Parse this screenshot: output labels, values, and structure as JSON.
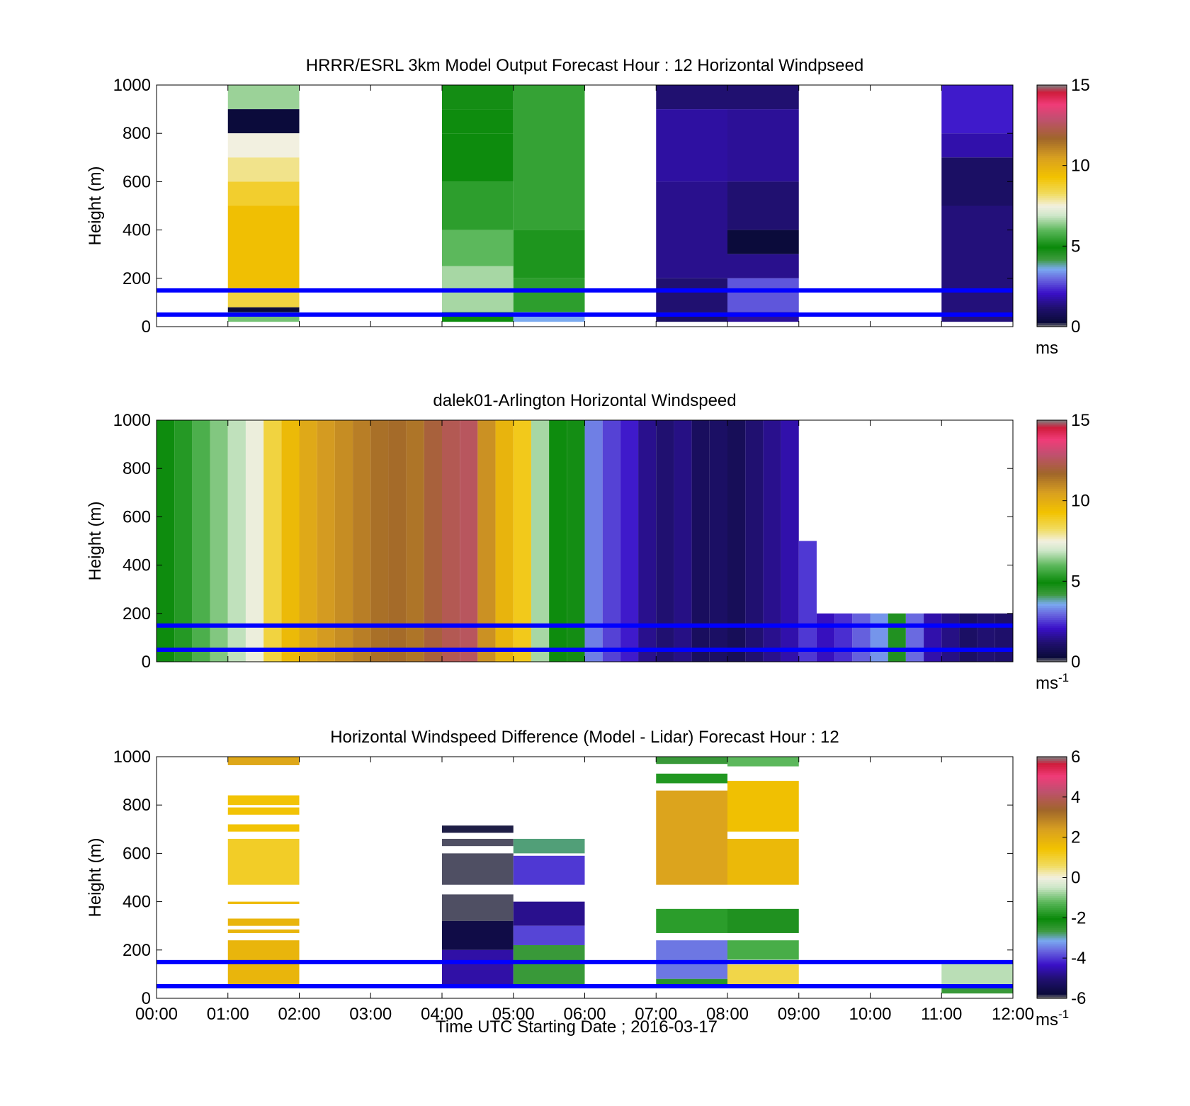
{
  "figure": {
    "xlabel": "Time UTC  Starting Date ; 2016-03-17",
    "xticks": [
      "00:00",
      "01:00",
      "02:00",
      "03:00",
      "04:00",
      "05:00",
      "06:00",
      "07:00",
      "08:00",
      "09:00",
      "10:00",
      "11:00",
      "12:00"
    ],
    "ylabel": "Height (m)",
    "yticks": [
      "0",
      "200",
      "400",
      "600",
      "800",
      "1000"
    ],
    "highlight_line_color": "#0000ff",
    "highlight_heights_m": [
      50,
      150
    ]
  },
  "chart_data": [
    {
      "type": "heatmap",
      "title": "HRRR/ESRL 3km Model Output   Forecast Hour : 12 Horizontal Windpseed",
      "colorbar_unit": "ms",
      "colorbar_ticks": [
        "0",
        "5",
        "10",
        "15"
      ],
      "clim": [
        0,
        15
      ],
      "xlim_hours": [
        0,
        12
      ],
      "ylim": [
        0,
        1000
      ],
      "columns": [
        {
          "t0": 1,
          "t1": 2,
          "cells": [
            {
              "h0": 900,
              "h1": 1000,
              "v": 6.5
            },
            {
              "h0": 800,
              "h1": 900,
              "v": 0.3
            },
            {
              "h0": 700,
              "h1": 800,
              "v": 7.5
            },
            {
              "h0": 600,
              "h1": 700,
              "v": 8.0
            },
            {
              "h0": 500,
              "h1": 600,
              "v": 8.8
            },
            {
              "h0": 160,
              "h1": 500,
              "v": 9.4
            },
            {
              "h0": 80,
              "h1": 160,
              "v": 8.6
            },
            {
              "h0": 60,
              "h1": 80,
              "v": 0.3
            },
            {
              "h0": 20,
              "h1": 60,
              "v": 6.2
            }
          ]
        },
        {
          "t0": 4,
          "t1": 5,
          "cells": [
            {
              "h0": 900,
              "h1": 1000,
              "v": 4.8
            },
            {
              "h0": 800,
              "h1": 900,
              "v": 5.0
            },
            {
              "h0": 600,
              "h1": 800,
              "v": 4.9
            },
            {
              "h0": 400,
              "h1": 600,
              "v": 5.4
            },
            {
              "h0": 250,
              "h1": 400,
              "v": 6.0
            },
            {
              "h0": 60,
              "h1": 250,
              "v": 6.6
            },
            {
              "h0": 20,
              "h1": 60,
              "v": 5.0
            }
          ]
        },
        {
          "t0": 5,
          "t1": 6,
          "cells": [
            {
              "h0": 400,
              "h1": 1000,
              "v": 5.5
            },
            {
              "h0": 200,
              "h1": 400,
              "v": 5.2
            },
            {
              "h0": 60,
              "h1": 200,
              "v": 5.4
            },
            {
              "h0": 20,
              "h1": 60,
              "v": 3.6
            }
          ]
        },
        {
          "t0": 7,
          "t1": 8,
          "cells": [
            {
              "h0": 900,
              "h1": 1000,
              "v": 1.2
            },
            {
              "h0": 600,
              "h1": 900,
              "v": 1.7
            },
            {
              "h0": 200,
              "h1": 600,
              "v": 1.5
            },
            {
              "h0": 60,
              "h1": 200,
              "v": 1.2
            },
            {
              "h0": 20,
              "h1": 60,
              "v": 1.0
            }
          ]
        },
        {
          "t0": 8,
          "t1": 9,
          "cells": [
            {
              "h0": 900,
              "h1": 1000,
              "v": 1.2
            },
            {
              "h0": 600,
              "h1": 900,
              "v": 1.6
            },
            {
              "h0": 400,
              "h1": 600,
              "v": 1.2
            },
            {
              "h0": 300,
              "h1": 400,
              "v": 0.3
            },
            {
              "h0": 200,
              "h1": 300,
              "v": 1.5
            },
            {
              "h0": 60,
              "h1": 200,
              "v": 2.8
            },
            {
              "h0": 20,
              "h1": 60,
              "v": 1.6
            }
          ]
        },
        {
          "t0": 11,
          "t1": 12,
          "cells": [
            {
              "h0": 800,
              "h1": 1000,
              "v": 2.2
            },
            {
              "h0": 700,
              "h1": 800,
              "v": 1.8
            },
            {
              "h0": 500,
              "h1": 700,
              "v": 1.0
            },
            {
              "h0": 20,
              "h1": 500,
              "v": 1.3
            }
          ]
        }
      ]
    },
    {
      "type": "heatmap",
      "title": "dalek01-Arlington  Horizontal Windspeed",
      "colorbar_unit": "ms-1",
      "colorbar_ticks": [
        "0",
        "5",
        "10",
        "15"
      ],
      "clim": [
        0,
        15
      ],
      "xlim_hours": [
        0,
        12
      ],
      "ylim": [
        0,
        1000
      ],
      "columns": [
        {
          "t0": 0.0,
          "t1": 0.25,
          "cells": [
            {
              "h0": 0,
              "h1": 1000,
              "v": 5.0
            }
          ]
        },
        {
          "t0": 0.25,
          "t1": 0.5,
          "cells": [
            {
              "h0": 0,
              "h1": 1000,
              "v": 5.3
            }
          ]
        },
        {
          "t0": 0.5,
          "t1": 0.75,
          "cells": [
            {
              "h0": 0,
              "h1": 1000,
              "v": 5.8
            }
          ]
        },
        {
          "t0": 0.75,
          "t1": 1.0,
          "cells": [
            {
              "h0": 0,
              "h1": 1000,
              "v": 6.3
            }
          ]
        },
        {
          "t0": 1.0,
          "t1": 1.25,
          "cells": [
            {
              "h0": 0,
              "h1": 1000,
              "v": 6.8
            }
          ]
        },
        {
          "t0": 1.25,
          "t1": 1.5,
          "cells": [
            {
              "h0": 0,
              "h1": 1000,
              "v": 7.4
            }
          ]
        },
        {
          "t0": 1.5,
          "t1": 1.75,
          "cells": [
            {
              "h0": 0,
              "h1": 1000,
              "v": 8.6
            }
          ]
        },
        {
          "t0": 1.75,
          "t1": 2.0,
          "cells": [
            {
              "h0": 0,
              "h1": 1000,
              "v": 9.6
            }
          ]
        },
        {
          "t0": 2.0,
          "t1": 2.25,
          "cells": [
            {
              "h0": 0,
              "h1": 1000,
              "v": 10.2
            }
          ]
        },
        {
          "t0": 2.25,
          "t1": 2.5,
          "cells": [
            {
              "h0": 0,
              "h1": 1000,
              "v": 10.6
            }
          ]
        },
        {
          "t0": 2.5,
          "t1": 2.75,
          "cells": [
            {
              "h0": 0,
              "h1": 1000,
              "v": 10.9
            }
          ]
        },
        {
          "t0": 2.75,
          "t1": 3.0,
          "cells": [
            {
              "h0": 0,
              "h1": 1000,
              "v": 11.2
            }
          ]
        },
        {
          "t0": 3.0,
          "t1": 3.25,
          "cells": [
            {
              "h0": 0,
              "h1": 1000,
              "v": 11.5
            }
          ]
        },
        {
          "t0": 3.25,
          "t1": 3.5,
          "cells": [
            {
              "h0": 0,
              "h1": 1000,
              "v": 11.6
            }
          ]
        },
        {
          "t0": 3.5,
          "t1": 3.75,
          "cells": [
            {
              "h0": 0,
              "h1": 1000,
              "v": 11.4
            }
          ]
        },
        {
          "t0": 3.75,
          "t1": 4.0,
          "cells": [
            {
              "h0": 0,
              "h1": 1000,
              "v": 12.0
            }
          ]
        },
        {
          "t0": 4.0,
          "t1": 4.25,
          "cells": [
            {
              "h0": 0,
              "h1": 1000,
              "v": 12.4
            }
          ]
        },
        {
          "t0": 4.25,
          "t1": 4.5,
          "cells": [
            {
              "h0": 0,
              "h1": 1000,
              "v": 12.6
            }
          ]
        },
        {
          "t0": 4.5,
          "t1": 4.75,
          "cells": [
            {
              "h0": 0,
              "h1": 1000,
              "v": 10.8
            }
          ]
        },
        {
          "t0": 4.75,
          "t1": 5.0,
          "cells": [
            {
              "h0": 0,
              "h1": 1000,
              "v": 9.8
            }
          ]
        },
        {
          "t0": 5.0,
          "t1": 5.25,
          "cells": [
            {
              "h0": 0,
              "h1": 1000,
              "v": 9.0
            }
          ]
        },
        {
          "t0": 5.25,
          "t1": 5.5,
          "cells": [
            {
              "h0": 0,
              "h1": 1000,
              "v": 6.6
            }
          ]
        },
        {
          "t0": 5.5,
          "t1": 5.75,
          "cells": [
            {
              "h0": 0,
              "h1": 1000,
              "v": 5.0
            }
          ]
        },
        {
          "t0": 5.75,
          "t1": 6.0,
          "cells": [
            {
              "h0": 0,
              "h1": 1000,
              "v": 4.8
            }
          ]
        },
        {
          "t0": 6.0,
          "t1": 6.25,
          "cells": [
            {
              "h0": 0,
              "h1": 1000,
              "v": 3.2
            }
          ]
        },
        {
          "t0": 6.25,
          "t1": 6.5,
          "cells": [
            {
              "h0": 0,
              "h1": 1000,
              "v": 2.6
            }
          ]
        },
        {
          "t0": 6.5,
          "t1": 6.75,
          "cells": [
            {
              "h0": 0,
              "h1": 1000,
              "v": 2.2
            }
          ]
        },
        {
          "t0": 6.75,
          "t1": 7.0,
          "cells": [
            {
              "h0": 0,
              "h1": 1000,
              "v": 1.5
            }
          ]
        },
        {
          "t0": 7.0,
          "t1": 7.25,
          "cells": [
            {
              "h0": 0,
              "h1": 1000,
              "v": 1.2
            }
          ]
        },
        {
          "t0": 7.25,
          "t1": 7.5,
          "cells": [
            {
              "h0": 0,
              "h1": 1000,
              "v": 1.4
            }
          ]
        },
        {
          "t0": 7.5,
          "t1": 7.75,
          "cells": [
            {
              "h0": 0,
              "h1": 1000,
              "v": 0.9
            }
          ]
        },
        {
          "t0": 7.75,
          "t1": 8.0,
          "cells": [
            {
              "h0": 0,
              "h1": 1000,
              "v": 1.0
            }
          ]
        },
        {
          "t0": 8.0,
          "t1": 8.25,
          "cells": [
            {
              "h0": 0,
              "h1": 1000,
              "v": 0.8
            }
          ]
        },
        {
          "t0": 8.25,
          "t1": 8.5,
          "cells": [
            {
              "h0": 0,
              "h1": 1000,
              "v": 1.2
            }
          ]
        },
        {
          "t0": 8.5,
          "t1": 8.75,
          "cells": [
            {
              "h0": 0,
              "h1": 1000,
              "v": 1.5
            }
          ]
        },
        {
          "t0": 8.75,
          "t1": 9.0,
          "cells": [
            {
              "h0": 0,
              "h1": 1000,
              "v": 1.8
            }
          ]
        },
        {
          "t0": 9.0,
          "t1": 9.25,
          "cells": [
            {
              "h0": 0,
              "h1": 500,
              "v": 2.5
            }
          ]
        },
        {
          "t0": 9.25,
          "t1": 9.5,
          "cells": [
            {
              "h0": 0,
              "h1": 200,
              "v": 2.0
            }
          ]
        },
        {
          "t0": 9.5,
          "t1": 9.75,
          "cells": [
            {
              "h0": 0,
              "h1": 200,
              "v": 2.4
            }
          ]
        },
        {
          "t0": 9.75,
          "t1": 10.0,
          "cells": [
            {
              "h0": 0,
              "h1": 200,
              "v": 2.9
            }
          ]
        },
        {
          "t0": 10.0,
          "t1": 10.25,
          "cells": [
            {
              "h0": 0,
              "h1": 200,
              "v": 3.4
            }
          ]
        },
        {
          "t0": 10.25,
          "t1": 10.5,
          "cells": [
            {
              "h0": 0,
              "h1": 200,
              "v": 4.6
            }
          ]
        },
        {
          "t0": 10.5,
          "t1": 10.75,
          "cells": [
            {
              "h0": 0,
              "h1": 200,
              "v": 3.0
            }
          ]
        },
        {
          "t0": 10.75,
          "t1": 11.0,
          "cells": [
            {
              "h0": 0,
              "h1": 200,
              "v": 1.8
            }
          ]
        },
        {
          "t0": 11.0,
          "t1": 11.25,
          "cells": [
            {
              "h0": 0,
              "h1": 200,
              "v": 1.4
            }
          ]
        },
        {
          "t0": 11.25,
          "t1": 11.5,
          "cells": [
            {
              "h0": 0,
              "h1": 200,
              "v": 1.0
            }
          ]
        },
        {
          "t0": 11.5,
          "t1": 11.75,
          "cells": [
            {
              "h0": 0,
              "h1": 200,
              "v": 1.2
            }
          ]
        },
        {
          "t0": 11.75,
          "t1": 12.0,
          "cells": [
            {
              "h0": 0,
              "h1": 200,
              "v": 1.1
            }
          ]
        }
      ]
    },
    {
      "type": "heatmap",
      "title": "Horizontal Windspeed Difference (Model - Lidar) Forecast Hour : 12",
      "colorbar_unit": "ms-1",
      "colorbar_ticks": [
        "-6",
        "-4",
        "-2",
        "0",
        "2",
        "4",
        "6"
      ],
      "clim": [
        -6,
        6
      ],
      "xlim_hours": [
        0,
        12
      ],
      "ylim": [
        0,
        1000
      ],
      "columns": [
        {
          "t0": 1,
          "t1": 2,
          "cells": [
            {
              "h0": 965,
              "h1": 1000,
              "v": 2.2
            },
            {
              "h0": 800,
              "h1": 840,
              "v": 1.4
            },
            {
              "h0": 760,
              "h1": 790,
              "v": 1.4
            },
            {
              "h0": 690,
              "h1": 720,
              "v": 1.4
            },
            {
              "h0": 470,
              "h1": 660,
              "v": 1.1
            },
            {
              "h0": 390,
              "h1": 400,
              "v": 1.6
            },
            {
              "h0": 300,
              "h1": 330,
              "v": 1.8
            },
            {
              "h0": 270,
              "h1": 285,
              "v": 1.8
            },
            {
              "h0": 50,
              "h1": 240,
              "v": 1.8
            }
          ]
        },
        {
          "t0": 4,
          "t1": 5,
          "cells": [
            {
              "h0": 685,
              "h1": 715,
              "v": -5.8
            },
            {
              "h0": 630,
              "h1": 660,
              "v": -5.9
            },
            {
              "h0": 470,
              "h1": 600,
              "v": -5.9
            },
            {
              "h0": 320,
              "h1": 430,
              "v": -5.9
            },
            {
              "h0": 200,
              "h1": 320,
              "v": -5.6
            },
            {
              "h0": 50,
              "h1": 200,
              "v": -4.6
            }
          ]
        },
        {
          "t0": 5,
          "t1": 6,
          "cells": [
            {
              "h0": 600,
              "h1": 660,
              "v": -2.8
            },
            {
              "h0": 470,
              "h1": 590,
              "v": -4.0
            },
            {
              "h0": 300,
              "h1": 400,
              "v": -4.8
            },
            {
              "h0": 220,
              "h1": 300,
              "v": -3.9
            },
            {
              "h0": 50,
              "h1": 220,
              "v": -2.6
            }
          ]
        },
        {
          "t0": 7,
          "t1": 8,
          "cells": [
            {
              "h0": 970,
              "h1": 1000,
              "v": -2.6
            },
            {
              "h0": 890,
              "h1": 930,
              "v": -1.8
            },
            {
              "h0": 470,
              "h1": 860,
              "v": 2.3
            },
            {
              "h0": 270,
              "h1": 370,
              "v": -1.7
            },
            {
              "h0": 80,
              "h1": 240,
              "v": -3.5
            },
            {
              "h0": 50,
              "h1": 80,
              "v": -2.4
            }
          ]
        },
        {
          "t0": 8,
          "t1": 9,
          "cells": [
            {
              "h0": 960,
              "h1": 1000,
              "v": -1.2
            },
            {
              "h0": 690,
              "h1": 900,
              "v": 1.5
            },
            {
              "h0": 470,
              "h1": 660,
              "v": 1.7
            },
            {
              "h0": 270,
              "h1": 370,
              "v": -2.3
            },
            {
              "h0": 160,
              "h1": 240,
              "v": -1.4
            },
            {
              "h0": 50,
              "h1": 140,
              "v": 0.8
            }
          ]
        },
        {
          "t0": 11,
          "t1": 12,
          "cells": [
            {
              "h0": 50,
              "h1": 150,
              "v": -0.6
            },
            {
              "h0": 20,
              "h1": 50,
              "v": -2.6
            }
          ]
        }
      ]
    }
  ]
}
